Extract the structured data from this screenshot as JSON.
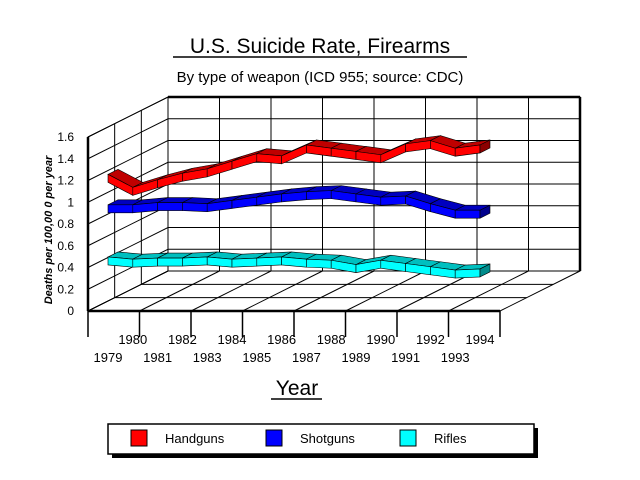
{
  "chart_data": {
    "type": "line",
    "style": "3d-ribbon",
    "title": "U.S. Suicide Rate, Firearms",
    "subtitle": "By type of weapon (ICD 955; source: CDC)",
    "xlabel": "Year",
    "ylabel": "Deaths per 100,00 0 per year",
    "ylim": [
      0,
      1.6
    ],
    "yticks": [
      "1.6",
      "1.4",
      "1.2",
      "1",
      "0.8",
      "0.6",
      "0.4",
      "0.2",
      "0"
    ],
    "x": [
      "1979",
      "1980",
      "1981",
      "1982",
      "1983",
      "1984",
      "1985",
      "1986",
      "1987",
      "1988",
      "1989",
      "1990",
      "1991",
      "1992",
      "1993",
      "1994"
    ],
    "grid": true,
    "legend_position": "bottom",
    "series": [
      {
        "name": "Handguns",
        "color": "#ff0000",
        "values": [
          1.22,
          1.1,
          1.17,
          1.23,
          1.27,
          1.34,
          1.41,
          1.39,
          1.49,
          1.46,
          1.43,
          1.4,
          1.5,
          1.53,
          1.46,
          1.49
        ]
      },
      {
        "name": "Shotguns",
        "color": "#0000ff",
        "values": [
          0.94,
          0.94,
          0.96,
          0.96,
          0.95,
          0.98,
          1.01,
          1.04,
          1.06,
          1.07,
          1.04,
          1.01,
          1.02,
          0.95,
          0.89,
          0.89
        ]
      },
      {
        "name": "Rifles",
        "color": "#00ffff",
        "values": [
          0.46,
          0.44,
          0.45,
          0.45,
          0.46,
          0.44,
          0.45,
          0.46,
          0.44,
          0.43,
          0.39,
          0.43,
          0.4,
          0.37,
          0.34,
          0.35
        ]
      }
    ]
  }
}
